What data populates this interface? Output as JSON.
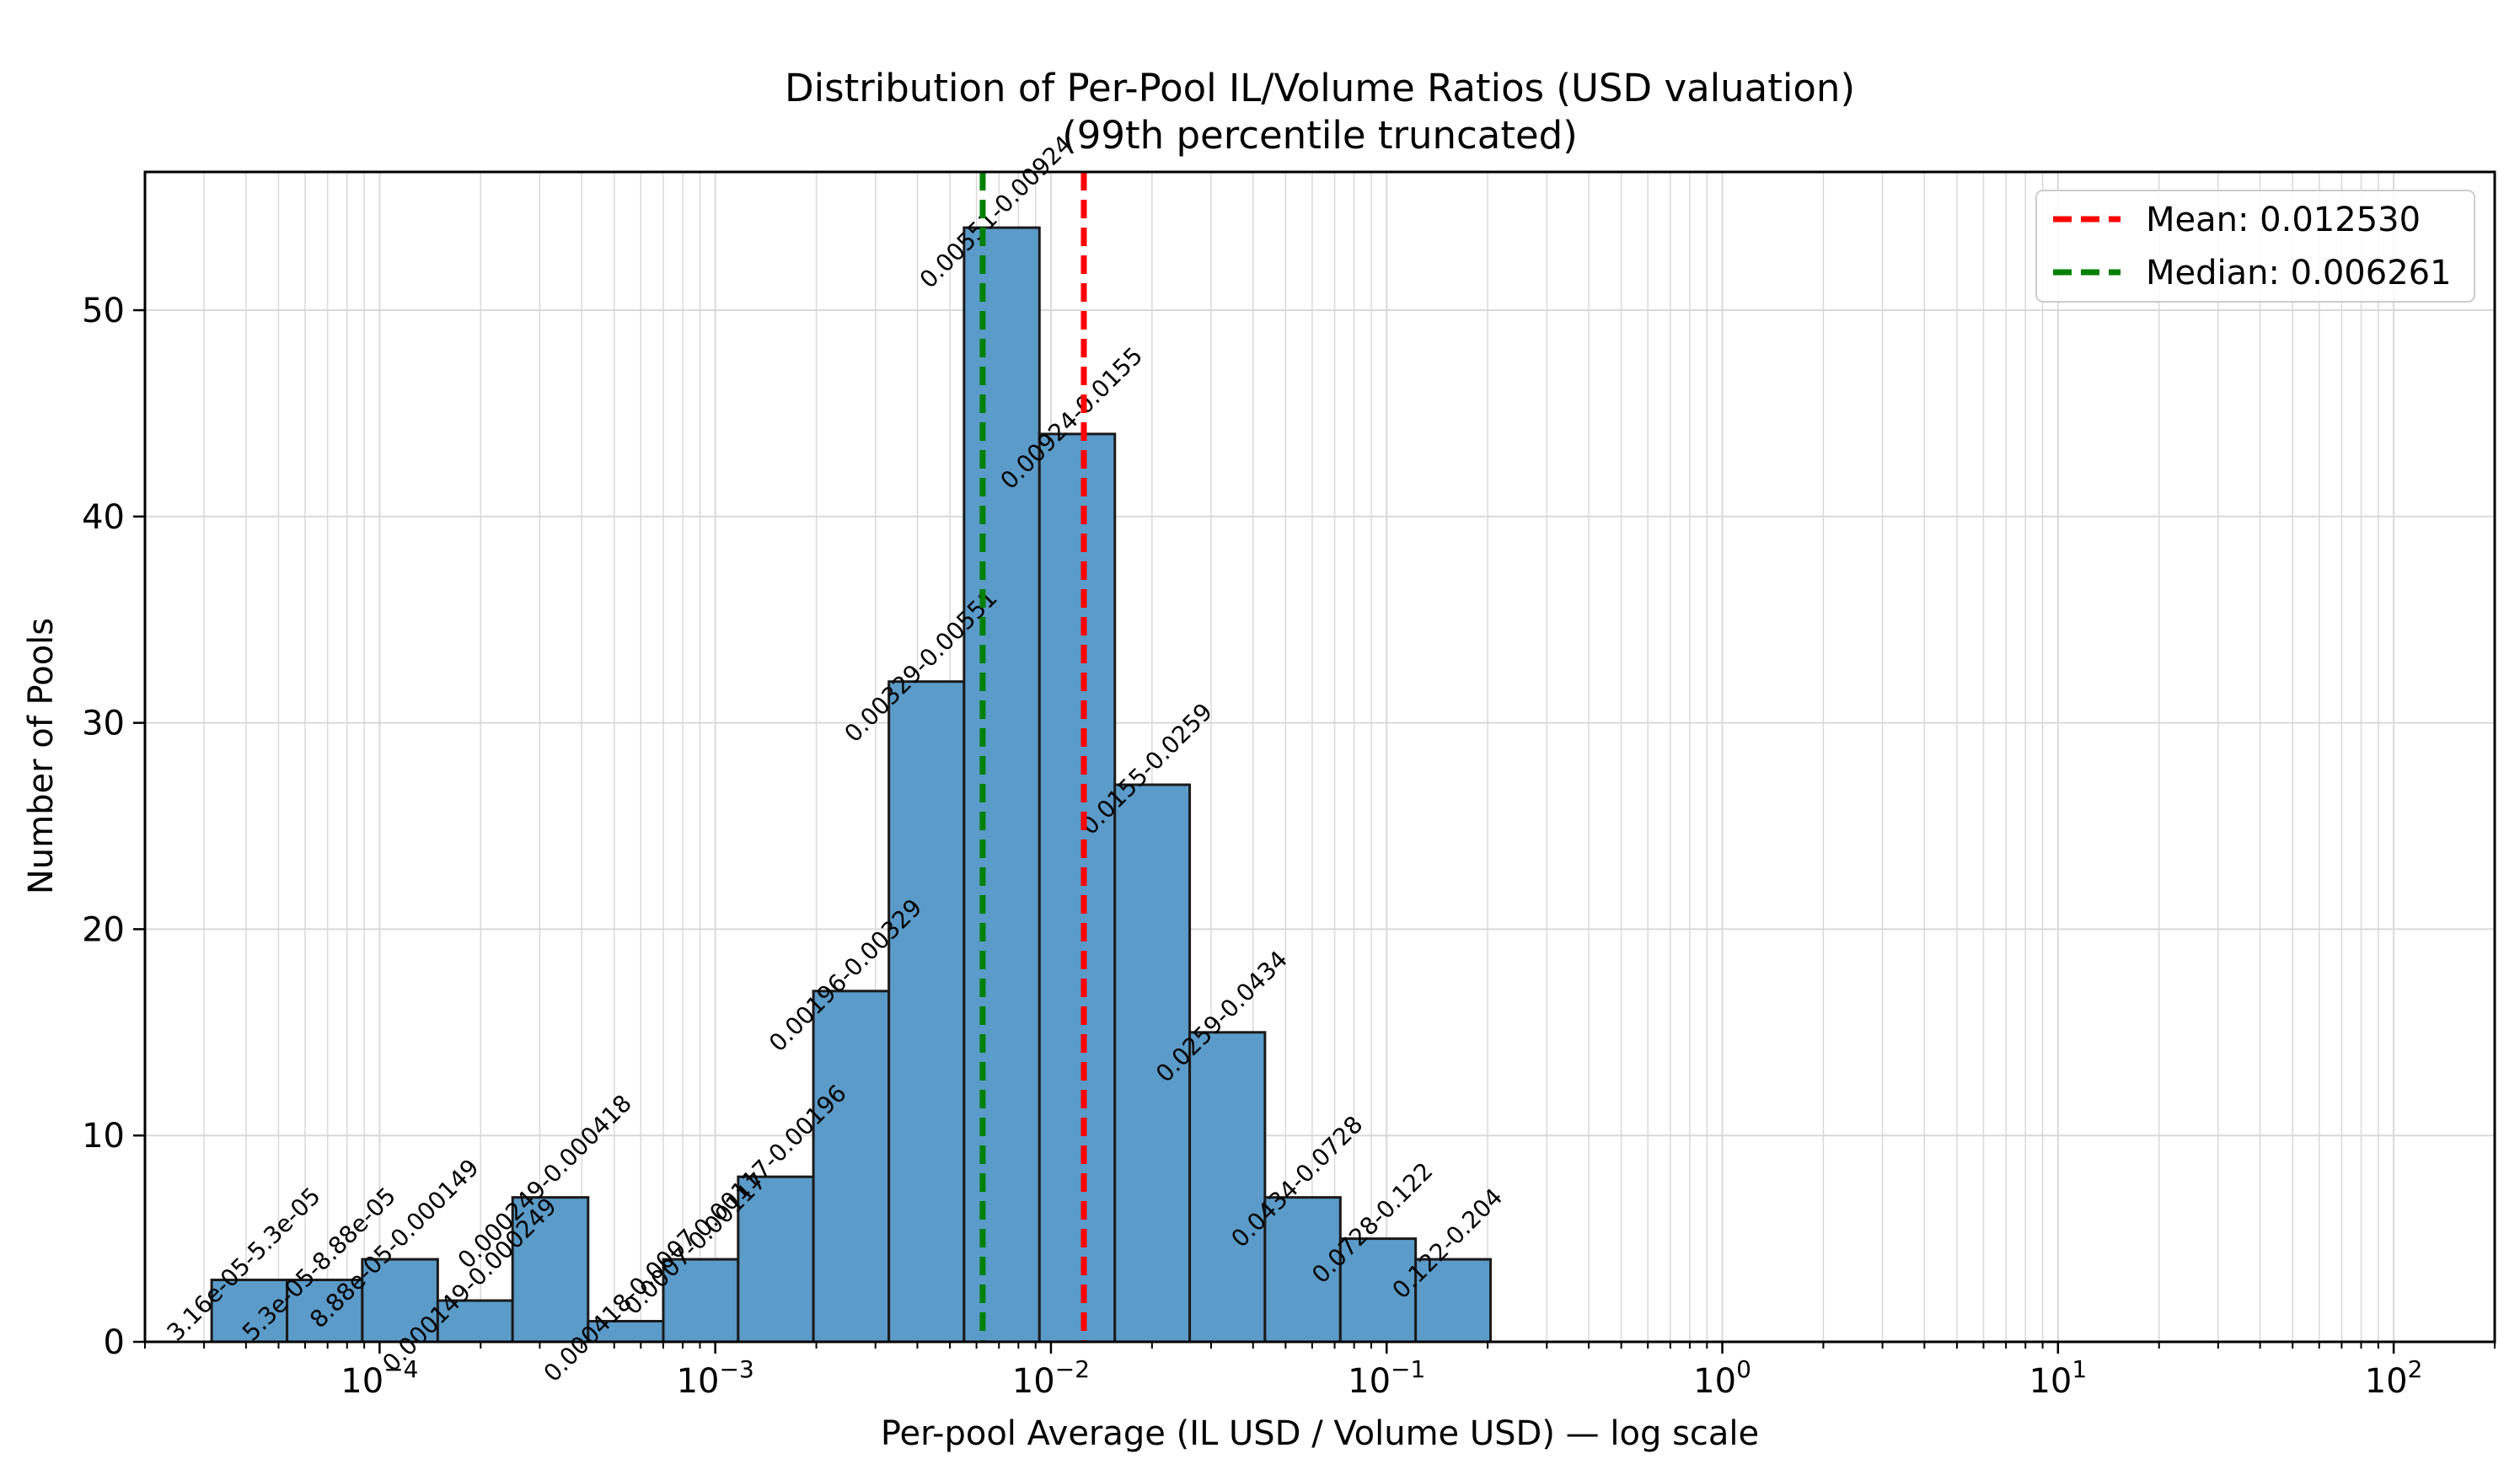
{
  "chart_data": {
    "type": "bar",
    "title_line1": "Distribution of Per-Pool IL/Volume Ratios (USD valuation)",
    "title_line2": "(99th percentile truncated)",
    "xlabel": "Per-pool Average (IL USD / Volume USD) — log scale",
    "ylabel": "Number of Pools",
    "x_scale": "log",
    "xlim": [
      2e-05,
      200
    ],
    "ylim": [
      0,
      56.7
    ],
    "grid": true,
    "legend_position": "top-right",
    "bar_color": "#5b9bc9",
    "bar_edge": "#1a1a1a",
    "x_ticks": [
      {
        "base": "10",
        "exp": "−4",
        "value": 0.0001
      },
      {
        "base": "10",
        "exp": "−3",
        "value": 0.001
      },
      {
        "base": "10",
        "exp": "−2",
        "value": 0.01
      },
      {
        "base": "10",
        "exp": "−1",
        "value": 0.1
      },
      {
        "base": "10",
        "exp": "0",
        "value": 1
      },
      {
        "base": "10",
        "exp": "1",
        "value": 10
      },
      {
        "base": "10",
        "exp": "2",
        "value": 100
      }
    ],
    "y_ticks": [
      0,
      10,
      20,
      30,
      40,
      50
    ],
    "bins": [
      {
        "left": 3.16e-05,
        "right": 5.3e-05,
        "count": 3,
        "label": "3.16e-05-5.3e-05"
      },
      {
        "left": 5.3e-05,
        "right": 8.88e-05,
        "count": 3,
        "label": "5.3e-05-8.88e-05"
      },
      {
        "left": 8.88e-05,
        "right": 0.000149,
        "count": 4,
        "label": "8.88e-05-0.000149"
      },
      {
        "left": 0.000149,
        "right": 0.000249,
        "count": 2,
        "label": "0.000149-0.000249"
      },
      {
        "left": 0.000249,
        "right": 0.000418,
        "count": 7,
        "label": "0.000249-0.000418"
      },
      {
        "left": 0.000418,
        "right": 0.0007,
        "count": 1,
        "label": "0.000418-0.0007"
      },
      {
        "left": 0.0007,
        "right": 0.00117,
        "count": 4,
        "label": "0.0007-0.00117"
      },
      {
        "left": 0.00117,
        "right": 0.00196,
        "count": 8,
        "label": "0.00117-0.00196"
      },
      {
        "left": 0.00196,
        "right": 0.00329,
        "count": 17,
        "label": "0.00196-0.00329"
      },
      {
        "left": 0.00329,
        "right": 0.00551,
        "count": 32,
        "label": "0.00329-0.00551"
      },
      {
        "left": 0.00551,
        "right": 0.00924,
        "count": 54,
        "label": "0.00551-0.00924"
      },
      {
        "left": 0.00924,
        "right": 0.0155,
        "count": 44,
        "label": "0.00924-0.0155"
      },
      {
        "left": 0.0155,
        "right": 0.0259,
        "count": 27,
        "label": "0.0155-0.0259"
      },
      {
        "left": 0.0259,
        "right": 0.0434,
        "count": 15,
        "label": "0.0259-0.0434"
      },
      {
        "left": 0.0434,
        "right": 0.0728,
        "count": 7,
        "label": "0.0434-0.0728"
      },
      {
        "left": 0.0728,
        "right": 0.122,
        "count": 5,
        "label": "0.0728-0.122"
      },
      {
        "left": 0.122,
        "right": 0.204,
        "count": 4,
        "label": "0.122-0.204"
      }
    ],
    "lines": [
      {
        "name": "Mean: 0.012530",
        "value": 0.01253,
        "color": "#ff0000"
      },
      {
        "name": "Median: 0.006261",
        "value": 0.006261,
        "color": "#008000"
      }
    ]
  }
}
